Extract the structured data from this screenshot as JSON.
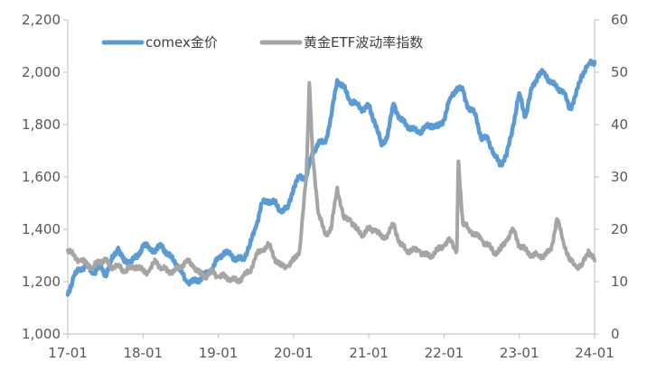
{
  "chart_data": {
    "type": "line",
    "title": "",
    "xlabel": "",
    "ylabel": "",
    "x_categories": [
      "17-01",
      "18-01",
      "19-01",
      "20-01",
      "21-01",
      "22-01",
      "23-01",
      "24-01"
    ],
    "y_left": {
      "min": 1000,
      "max": 2200,
      "ticks": [
        "1,000",
        "1,200",
        "1,400",
        "1,600",
        "1,800",
        "2,000",
        "2,200"
      ]
    },
    "y_right": {
      "min": 0,
      "max": 60,
      "ticks": [
        "0",
        "10",
        "20",
        "30",
        "40",
        "50",
        "60"
      ]
    },
    "grid": false,
    "legend_position": "top-left",
    "series": [
      {
        "name": "comex金价",
        "axis": "left",
        "color": "#5B9BD5",
        "x": [
          2017.0,
          2017.08,
          2017.17,
          2017.25,
          2017.33,
          2017.42,
          2017.5,
          2017.58,
          2017.67,
          2017.75,
          2017.83,
          2017.92,
          2018.0,
          2018.08,
          2018.17,
          2018.25,
          2018.33,
          2018.42,
          2018.5,
          2018.58,
          2018.67,
          2018.75,
          2018.83,
          2018.92,
          2019.0,
          2019.08,
          2019.17,
          2019.25,
          2019.33,
          2019.42,
          2019.5,
          2019.58,
          2019.67,
          2019.75,
          2019.83,
          2019.92,
          2020.0,
          2020.08,
          2020.17,
          2020.25,
          2020.33,
          2020.42,
          2020.5,
          2020.58,
          2020.67,
          2020.75,
          2020.83,
          2020.92,
          2021.0,
          2021.08,
          2021.17,
          2021.25,
          2021.33,
          2021.42,
          2021.5,
          2021.58,
          2021.67,
          2021.75,
          2021.83,
          2021.92,
          2022.0,
          2022.08,
          2022.17,
          2022.25,
          2022.33,
          2022.42,
          2022.5,
          2022.58,
          2022.67,
          2022.75,
          2022.83,
          2022.92,
          2023.0,
          2023.08,
          2023.17,
          2023.25,
          2023.33,
          2023.42,
          2023.5,
          2023.58,
          2023.67,
          2023.75,
          2023.83,
          2023.92,
          2024.0
        ],
        "y": [
          1150,
          1220,
          1250,
          1265,
          1230,
          1260,
          1225,
          1280,
          1330,
          1275,
          1280,
          1290,
          1340,
          1330,
          1320,
          1340,
          1300,
          1280,
          1240,
          1200,
          1200,
          1210,
          1225,
          1250,
          1290,
          1315,
          1300,
          1285,
          1285,
          1340,
          1410,
          1500,
          1510,
          1500,
          1470,
          1480,
          1560,
          1600,
          1600,
          1690,
          1730,
          1730,
          1830,
          1970,
          1940,
          1890,
          1880,
          1860,
          1870,
          1810,
          1720,
          1760,
          1880,
          1820,
          1800,
          1780,
          1770,
          1790,
          1800,
          1790,
          1820,
          1900,
          1940,
          1930,
          1860,
          1840,
          1740,
          1750,
          1680,
          1650,
          1680,
          1800,
          1920,
          1830,
          1940,
          1990,
          2000,
          1960,
          1940,
          1930,
          1860,
          1910,
          1990,
          2030,
          2040
        ]
      },
      {
        "name": "黄金ETF波动率指数",
        "axis": "right",
        "color": "#A5A5A5",
        "x": [
          2017.0,
          2017.08,
          2017.17,
          2017.25,
          2017.33,
          2017.42,
          2017.5,
          2017.58,
          2017.67,
          2017.75,
          2017.83,
          2017.92,
          2018.0,
          2018.08,
          2018.17,
          2018.25,
          2018.33,
          2018.42,
          2018.5,
          2018.58,
          2018.67,
          2018.75,
          2018.83,
          2018.92,
          2019.0,
          2019.08,
          2019.17,
          2019.25,
          2019.33,
          2019.42,
          2019.5,
          2019.58,
          2019.67,
          2019.75,
          2019.83,
          2019.92,
          2020.0,
          2020.08,
          2020.17,
          2020.21,
          2020.25,
          2020.33,
          2020.42,
          2020.5,
          2020.58,
          2020.67,
          2020.75,
          2020.83,
          2020.92,
          2021.0,
          2021.08,
          2021.17,
          2021.25,
          2021.33,
          2021.42,
          2021.5,
          2021.58,
          2021.67,
          2021.75,
          2021.83,
          2021.92,
          2022.0,
          2022.08,
          2022.17,
          2022.19,
          2022.25,
          2022.33,
          2022.42,
          2022.5,
          2022.58,
          2022.67,
          2022.75,
          2022.83,
          2022.92,
          2023.0,
          2023.08,
          2023.17,
          2023.25,
          2023.33,
          2023.42,
          2023.5,
          2023.58,
          2023.67,
          2023.75,
          2023.83,
          2023.92,
          2024.0
        ],
        "y": [
          16,
          15,
          14,
          13.5,
          12.5,
          14,
          14,
          13,
          13,
          12,
          12.5,
          13,
          12,
          12,
          14,
          12.5,
          12,
          12,
          13,
          14,
          13,
          11.5,
          11,
          12,
          11,
          11,
          10.5,
          10,
          11,
          12,
          15,
          16,
          17,
          14.5,
          13,
          13,
          14,
          16,
          30,
          48,
          35,
          23,
          19,
          20,
          28,
          22,
          22,
          20,
          19,
          20,
          20,
          18.5,
          19,
          21,
          17,
          16,
          16,
          16,
          15,
          15,
          16,
          17,
          18,
          16,
          33,
          21,
          20,
          19,
          18,
          17,
          15.5,
          16,
          18,
          20,
          17,
          16,
          15,
          15,
          15,
          16,
          22,
          18,
          14,
          13,
          13,
          16,
          14
        ]
      }
    ]
  }
}
